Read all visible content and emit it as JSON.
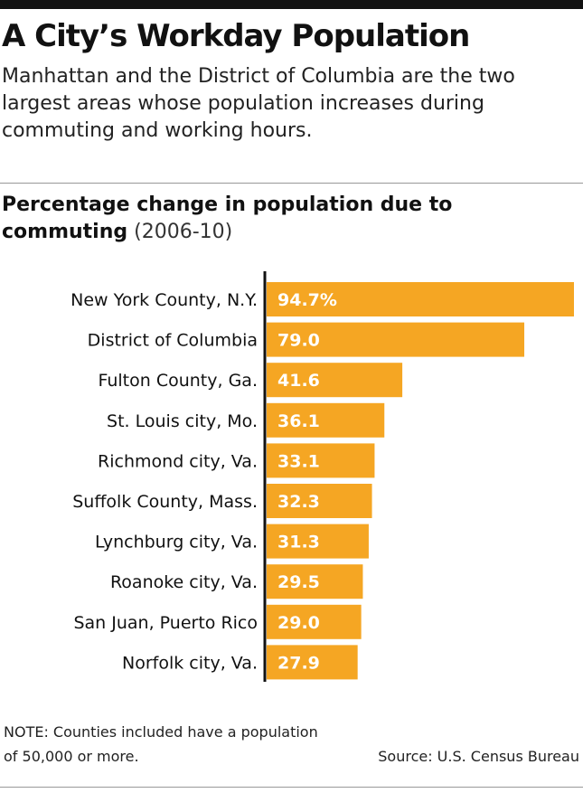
{
  "headline": "A City’s Workday Population",
  "dek": "Manhattan and the District of Columbia are the two largest areas whose population increases during commuting and working hours.",
  "chart_title": {
    "bold": "Percentage  change in population due to commuting",
    "period": "(2006-10)"
  },
  "colors": {
    "bar": "#f5a623",
    "bar_label": "#ffffff",
    "axis": "#111111"
  },
  "chart_data": {
    "type": "bar",
    "orientation": "horizontal",
    "title": "Percentage  change in population due to commuting (2006-10)",
    "xlabel": "",
    "ylabel": "",
    "xlim": [
      0,
      100
    ],
    "grid": false,
    "categories": [
      "New York County, N.Y.",
      "District of Columbia",
      "Fulton County, Ga.",
      "St. Louis city, Mo.",
      "Richmond city, Va.",
      "Suffolk County, Mass.",
      "Lynchburg city, Va.",
      "Roanoke city, Va.",
      "San Juan, Puerto Rico",
      "Norfolk city, Va."
    ],
    "values": [
      94.7,
      79.0,
      41.6,
      36.1,
      33.1,
      32.3,
      31.3,
      29.5,
      29.0,
      27.9
    ],
    "value_labels": [
      "94.7%",
      "79.0",
      "41.6",
      "36.1",
      "33.1",
      "32.3",
      "31.3",
      "29.5",
      "29.0",
      "27.9"
    ]
  },
  "note": "NOTE: Counties included have a population of 50,000 or more.",
  "source": "Source: U.S. Census Bureau"
}
